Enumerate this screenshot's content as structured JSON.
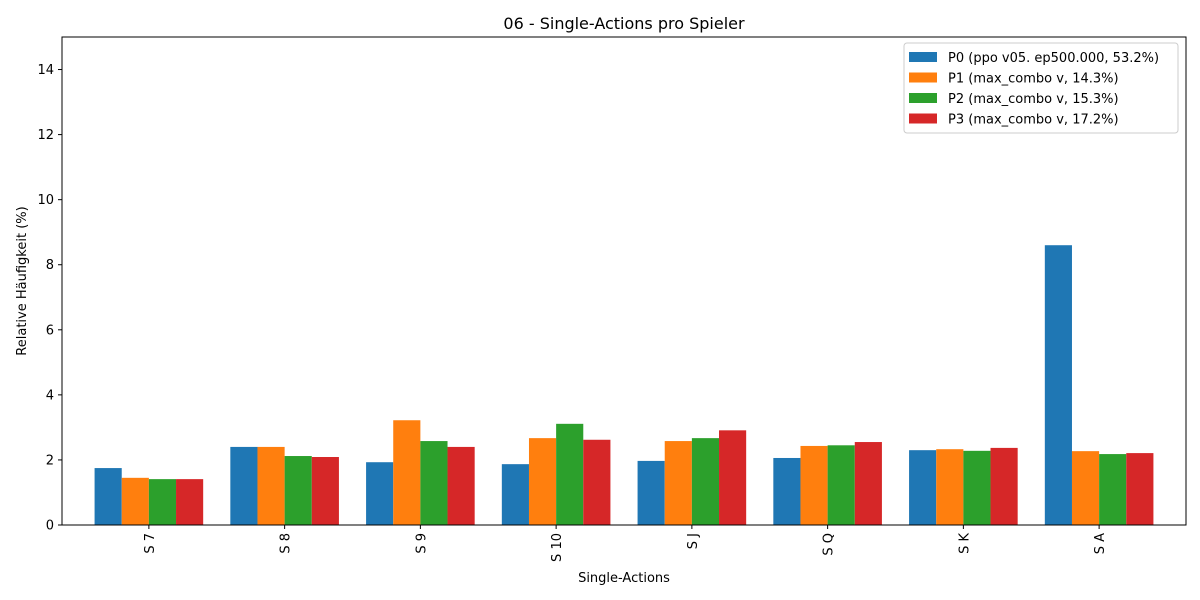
{
  "chart_data": {
    "type": "bar",
    "title": "06 - Single-Actions pro Spieler",
    "xlabel": "Single-Actions",
    "ylabel": "Relative Häufigkeit (%)",
    "ylim": [
      0,
      15
    ],
    "yticks": [
      0,
      2,
      4,
      6,
      8,
      10,
      12,
      14
    ],
    "grid": false,
    "legend_position": "top-right",
    "categories": [
      "S 7",
      "S 8",
      "S 9",
      "S 10",
      "S J",
      "S Q",
      "S K",
      "S A"
    ],
    "series": [
      {
        "name": "P0 (ppo v05. ep500.000, 53.2%)",
        "color": "#1f77b4",
        "values": [
          1.75,
          2.4,
          1.93,
          1.87,
          1.97,
          2.06,
          2.3,
          8.6
        ]
      },
      {
        "name": "P1 (max_combo v, 14.3%)",
        "color": "#ff7f0e",
        "values": [
          1.45,
          2.4,
          3.22,
          2.67,
          2.58,
          2.43,
          2.33,
          2.27
        ]
      },
      {
        "name": "P2 (max_combo v, 15.3%)",
        "color": "#2ca02c",
        "values": [
          1.41,
          2.12,
          2.58,
          3.11,
          2.67,
          2.45,
          2.28,
          2.18
        ]
      },
      {
        "name": "P3 (max_combo v, 17.2%)",
        "color": "#d62728",
        "values": [
          1.41,
          2.09,
          2.4,
          2.62,
          2.91,
          2.55,
          2.37,
          2.21
        ]
      }
    ]
  }
}
